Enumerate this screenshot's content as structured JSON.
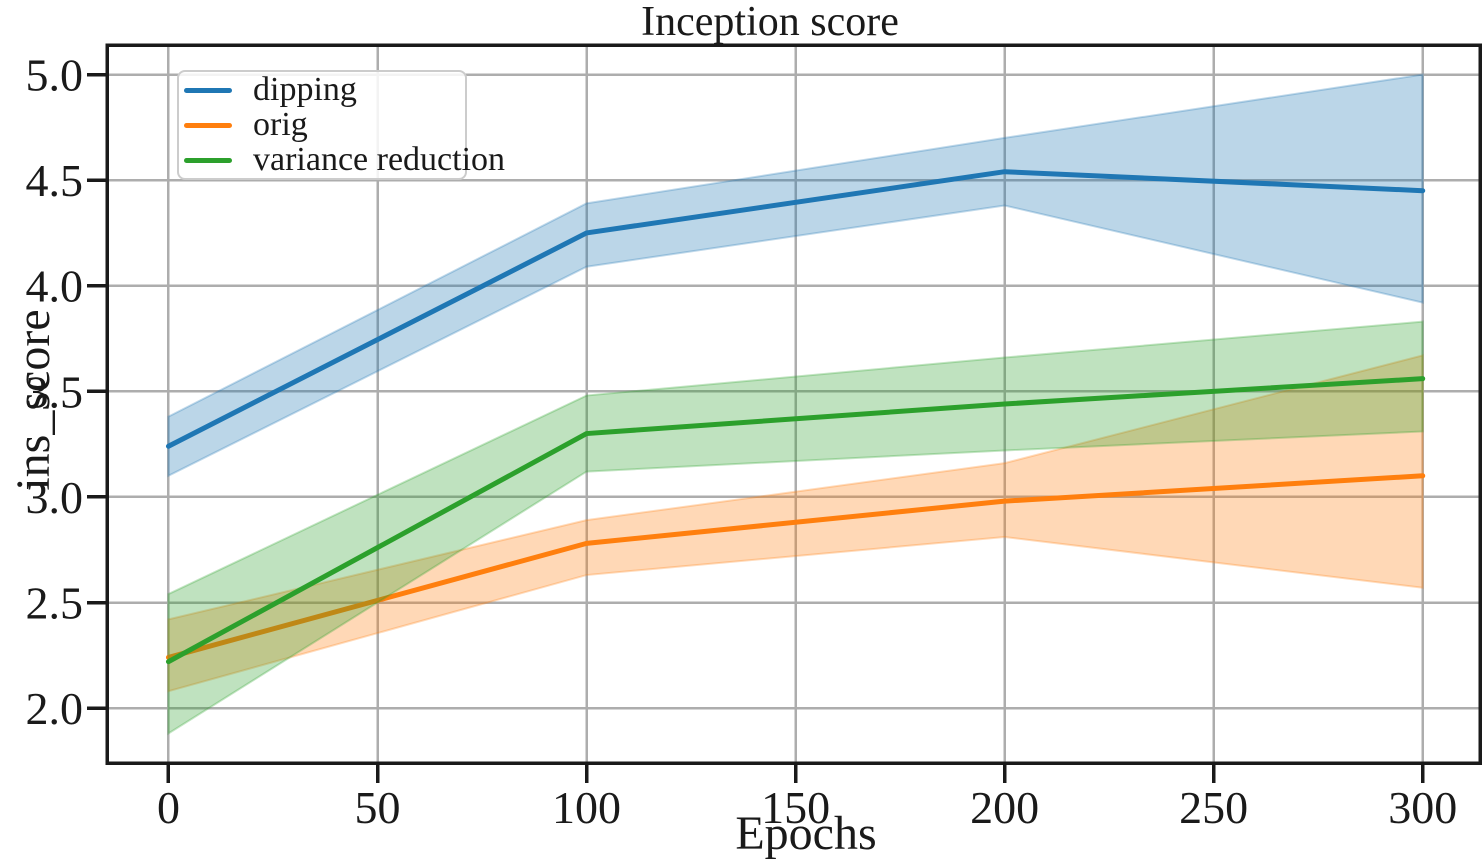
{
  "chart_data": {
    "type": "line",
    "title": "Inception score",
    "xlabel": "Epochs",
    "ylabel": "ins_score",
    "x": [
      0,
      100,
      200,
      300
    ],
    "xticks": [
      0,
      50,
      100,
      150,
      200,
      250,
      300
    ],
    "xtick_labels": [
      "0",
      "50",
      "100",
      "150",
      "200",
      "250",
      "300"
    ],
    "yticks": [
      2.0,
      2.5,
      3.0,
      3.5,
      4.0,
      4.5,
      5.0
    ],
    "ytick_labels": [
      "2.0",
      "2.5",
      "3.0",
      "3.5",
      "4.0",
      "4.5",
      "5.0"
    ],
    "xlim": [
      -14.7,
      313.7
    ],
    "ylim": [
      1.74,
      5.14
    ],
    "grid": true,
    "grid_color": "#adadad",
    "spine_color": "#1a1a1a",
    "text_color": "#1a1a1a",
    "band_alpha": 0.3,
    "legend_position": "upper-left",
    "series": [
      {
        "name": "dipping",
        "color": "#1f77b4",
        "values": [
          3.24,
          4.25,
          4.54,
          4.45
        ],
        "band_low": [
          3.1,
          4.09,
          4.38,
          3.92
        ],
        "band_high": [
          3.38,
          4.39,
          4.7,
          5.0
        ]
      },
      {
        "name": "orig",
        "color": "#ff7f0e",
        "values": [
          2.24,
          2.78,
          2.98,
          3.1
        ],
        "band_low": [
          2.08,
          2.63,
          2.81,
          2.57
        ],
        "band_high": [
          2.42,
          2.89,
          3.16,
          3.67
        ]
      },
      {
        "name": "variance reduction",
        "color": "#2ca02c",
        "values": [
          2.22,
          3.3,
          3.44,
          3.56
        ],
        "band_low": [
          1.88,
          3.12,
          3.22,
          3.31
        ],
        "band_high": [
          2.54,
          3.48,
          3.66,
          3.83
        ]
      }
    ]
  }
}
